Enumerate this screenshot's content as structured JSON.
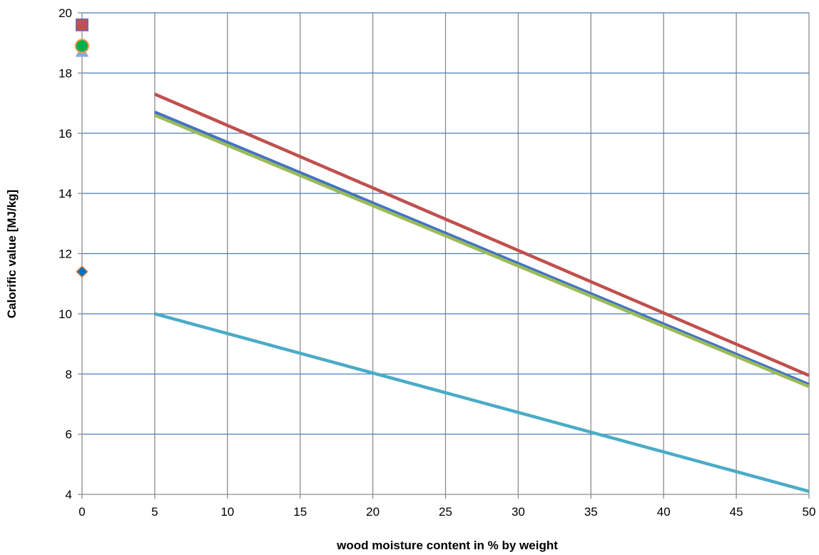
{
  "chart_data": {
    "type": "line",
    "xlabel": "wood moisture content in % by weight",
    "ylabel": "Calorific value [MJ/kg]",
    "xlim": [
      0,
      50
    ],
    "ylim": [
      4,
      20
    ],
    "x_ticks": [
      0,
      5,
      10,
      15,
      20,
      25,
      30,
      35,
      40,
      45,
      50
    ],
    "y_ticks": [
      4,
      6,
      8,
      10,
      12,
      14,
      16,
      18,
      20
    ],
    "grid": true,
    "series": [
      {
        "color": "#4472C4",
        "x": [
          5,
          50
        ],
        "values": [
          16.7,
          7.65
        ]
      },
      {
        "color": "#C0504D",
        "x": [
          5,
          50
        ],
        "values": [
          17.3,
          7.95
        ]
      },
      {
        "color": "#9BBB59",
        "x": [
          5,
          50
        ],
        "values": [
          16.6,
          7.58
        ]
      },
      {
        "color": "#4BACC6",
        "x": [
          5,
          50
        ],
        "values": [
          10.0,
          4.1
        ]
      }
    ],
    "markers": [
      {
        "shape": "square",
        "fill": "#C0504D",
        "stroke": "#8064A2",
        "x": 0,
        "y": 19.6
      },
      {
        "shape": "triangle",
        "fill": "#8EA9DB",
        "stroke": "#8EA9DB",
        "x": 0,
        "y": 18.7
      },
      {
        "shape": "circle",
        "fill": "#00B050",
        "stroke": "#F79646",
        "x": 0,
        "y": 18.9
      },
      {
        "shape": "diamond",
        "fill": "#0070C0",
        "stroke": "#F79646",
        "x": 0,
        "y": 11.4
      }
    ]
  }
}
